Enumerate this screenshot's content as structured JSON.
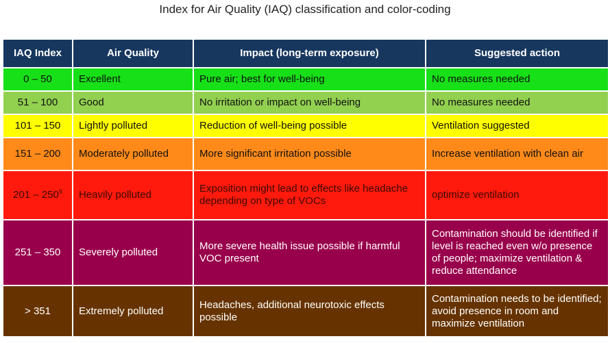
{
  "title": "Index for Air Quality (IAQ) classification and color-coding",
  "headers": [
    "IAQ Index",
    "Air Quality",
    "Impact (long-term exposure)",
    "Suggested action"
  ],
  "rows": [
    {
      "index": "0 – 50",
      "quality": "Excellent",
      "impact": "Pure air; best for well-being",
      "action": "No measures needed",
      "bg": "#18e018",
      "fg": "#111111"
    },
    {
      "index": "51 – 100",
      "quality": "Good",
      "impact": "No irritation or impact on well-being",
      "action": "No measures needed",
      "bg": "#92d050",
      "fg": "#111111"
    },
    {
      "index": "101 – 150",
      "quality": "Lightly polluted",
      "impact": "Reduction of well-being possible",
      "action": "Ventilation suggested",
      "bg": "#ffff00",
      "fg": "#111111"
    },
    {
      "index": "151 – 200",
      "quality": "Moderately polluted",
      "impact": "More significant irritation possible",
      "action": "Increase ventilation with clean air",
      "bg": "#ff8a1a",
      "fg": "#111111"
    },
    {
      "index": "201 – 250",
      "index_sup": "9",
      "quality": "Heavily polluted",
      "impact": "Exposition might lead to effects like headache depending on type of VOCs",
      "action": "optimize ventilation",
      "bg": "#ff1a0d",
      "fg": "#3a0a00"
    },
    {
      "index": "251 – 350",
      "quality": "Severely polluted",
      "impact": "More severe health issue possible if harmful VOC present",
      "action": "Contamination should be identified if level is reached even w/o presence of people; maximize ventilation & reduce attendance",
      "bg": "#99004c",
      "fg": "#ffffff"
    },
    {
      "index": "> 351",
      "quality": "Extremely polluted",
      "impact": "Headaches, additional neurotoxic effects possible",
      "action": "Contamination needs to be identified; avoid presence in room and maximize ventilation",
      "bg": "#663300",
      "fg": "#ffffff"
    }
  ]
}
